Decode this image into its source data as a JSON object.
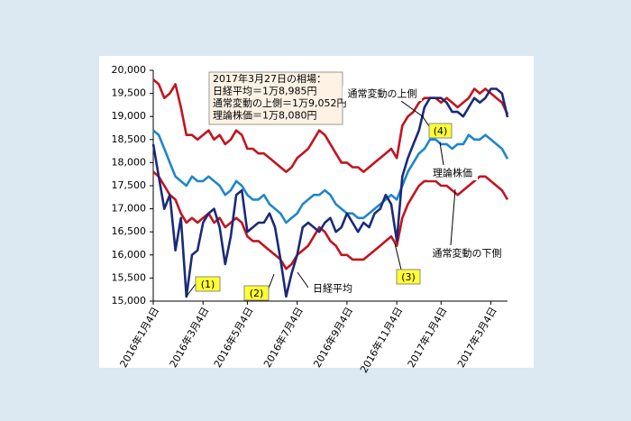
{
  "chart_data": {
    "type": "line",
    "categories": [
      "2016年1月4日",
      null,
      null,
      null,
      null,
      null,
      null,
      null,
      null,
      "2016年3月4日",
      null,
      null,
      null,
      null,
      null,
      null,
      null,
      "2016年5月4日",
      null,
      null,
      null,
      null,
      null,
      null,
      null,
      null,
      "2016年7月4日",
      null,
      null,
      null,
      null,
      null,
      null,
      null,
      null,
      "2016年9月4日",
      null,
      null,
      null,
      null,
      null,
      null,
      null,
      null,
      "2016年11月4日",
      null,
      null,
      null,
      null,
      null,
      null,
      null,
      "2017年1月4日",
      null,
      null,
      null,
      null,
      null,
      null,
      null,
      null,
      "2017年3月4日",
      null,
      null,
      null
    ],
    "series": [
      {
        "name": "通常変動の上側",
        "color": "#c3141e",
        "values": [
          19800,
          19700,
          19400,
          19500,
          19700,
          19200,
          18600,
          18600,
          18500,
          18600,
          18700,
          18500,
          18600,
          18400,
          18500,
          18700,
          18600,
          18300,
          18300,
          18200,
          18200,
          18100,
          18000,
          17900,
          17800,
          17900,
          18100,
          18200,
          18300,
          18500,
          18700,
          18600,
          18400,
          18200,
          18000,
          18000,
          17900,
          17900,
          17800,
          17900,
          18000,
          18100,
          18200,
          18300,
          18100,
          18800,
          19000,
          19100,
          19300,
          19400,
          19400,
          19400,
          19300,
          19400,
          19300,
          19200,
          19300,
          19400,
          19600,
          19500,
          19600,
          19500,
          19400,
          19300,
          19052
        ]
      },
      {
        "name": "通常変動の下側",
        "color": "#c3141e",
        "values": [
          17800,
          17700,
          17500,
          17300,
          17200,
          16900,
          16700,
          16800,
          16700,
          16800,
          16900,
          16700,
          16800,
          16600,
          16700,
          16800,
          16700,
          16400,
          16300,
          16300,
          16200,
          16100,
          16000,
          15900,
          15700,
          15800,
          16000,
          16100,
          16200,
          16400,
          16600,
          16500,
          16300,
          16200,
          16000,
          16000,
          15900,
          15900,
          15900,
          16000,
          16100,
          16200,
          16300,
          16400,
          16200,
          16800,
          17100,
          17300,
          17500,
          17600,
          17600,
          17600,
          17500,
          17500,
          17400,
          17300,
          17400,
          17500,
          17600,
          17700,
          17700,
          17600,
          17500,
          17400,
          17200
        ]
      },
      {
        "name": "理論株価",
        "color": "#1f86cc",
        "values": [
          18700,
          18600,
          18300,
          18000,
          17700,
          17600,
          17500,
          17700,
          17600,
          17600,
          17700,
          17600,
          17500,
          17300,
          17400,
          17600,
          17500,
          17300,
          17200,
          17200,
          17300,
          17100,
          17000,
          16900,
          16700,
          16800,
          16900,
          17100,
          17200,
          17300,
          17300,
          17400,
          17300,
          17100,
          17000,
          16900,
          16900,
          16800,
          16800,
          16900,
          17000,
          17100,
          17200,
          17300,
          17200,
          17500,
          17800,
          18000,
          18200,
          18300,
          18500,
          18500,
          18400,
          18400,
          18300,
          18400,
          18400,
          18600,
          18500,
          18500,
          18600,
          18500,
          18400,
          18300,
          18080
        ]
      },
      {
        "name": "日経平均",
        "color": "#1b2a78",
        "values": [
          18400,
          17700,
          17000,
          17300,
          16100,
          16800,
          15100,
          16000,
          16100,
          16700,
          16900,
          17000,
          16600,
          15800,
          16400,
          17300,
          17400,
          16500,
          16600,
          16700,
          16700,
          16900,
          16600,
          15900,
          15100,
          15600,
          16000,
          16600,
          16700,
          16600,
          16500,
          16700,
          16800,
          16500,
          16600,
          16900,
          16700,
          16500,
          16700,
          16600,
          16900,
          17000,
          17300,
          17100,
          16300,
          17700,
          18100,
          18400,
          18700,
          19200,
          19400,
          19400,
          19400,
          19300,
          19100,
          19100,
          19000,
          19200,
          19400,
          19300,
          19400,
          19600,
          19600,
          19500,
          18985
        ]
      }
    ],
    "ylim": [
      15000,
      20000
    ],
    "yticks": [
      {
        "value": 15000,
        "label": "15,000"
      },
      {
        "value": 15500,
        "label": "15,500"
      },
      {
        "value": 16000,
        "label": "16,000"
      },
      {
        "value": 16500,
        "label": "16,500"
      },
      {
        "value": 17000,
        "label": "17,000"
      },
      {
        "value": 17500,
        "label": "17,500"
      },
      {
        "value": 18000,
        "label": "18,000"
      },
      {
        "value": 18500,
        "label": "18,500"
      },
      {
        "value": 19000,
        "label": "19,000"
      },
      {
        "value": 19500,
        "label": "19,500"
      },
      {
        "value": {
          "value": 20000
        },
        "label": "20,000"
      }
    ],
    "grid": false,
    "info_box": [
      "2017年3月27日の相場：",
      "日経平均＝1万8,985円",
      "通常変動の上側＝1万9,052円",
      "理論株価＝1万8,080円"
    ],
    "annotations": [
      "通常変動の上側",
      "理論株価",
      "通常変動の下側",
      "日経平均",
      "(1)",
      "(2)",
      "(3)",
      "(4)"
    ]
  }
}
